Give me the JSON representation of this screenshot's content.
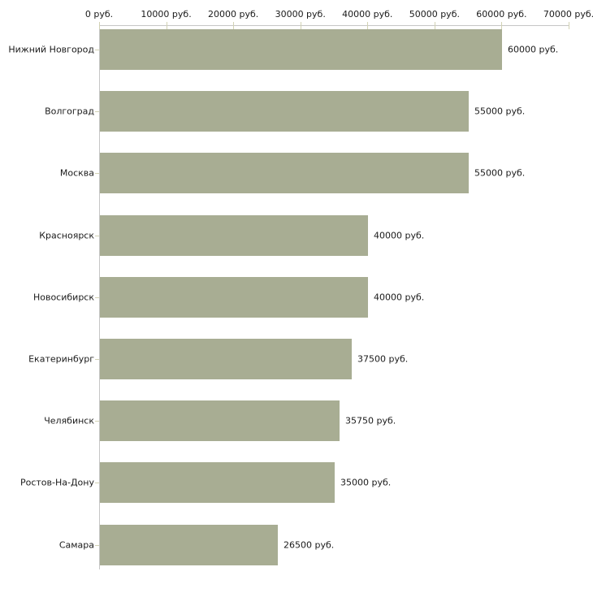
{
  "chart_data": {
    "type": "bar",
    "orientation": "horizontal",
    "title": "",
    "xlabel": "",
    "ylabel": "",
    "categories": [
      "Нижний Новгород",
      "Волгоград",
      "Москва",
      "Красноярск",
      "Новосибирск",
      "Екатеринбург",
      "Челябинск",
      "Ростов-На-Дону",
      "Самара"
    ],
    "values": [
      60000,
      55000,
      55000,
      40000,
      40000,
      37500,
      35750,
      35000,
      26500
    ],
    "bar_labels": [
      "60000 руб.",
      "55000 руб.",
      "55000 руб.",
      "40000 руб.",
      "40000 руб.",
      "37500 руб.",
      "35750 руб.",
      "35000 руб.",
      "26500 руб."
    ],
    "x_tick_labels": [
      "0 руб.",
      "10000 руб.",
      "20000 руб.",
      "30000 руб.",
      "40000 руб.",
      "50000 руб.",
      "60000 руб.",
      "70000 руб."
    ],
    "x_tick_values": [
      0,
      10000,
      20000,
      30000,
      40000,
      50000,
      60000,
      70000
    ],
    "xlim": [
      0,
      70000
    ],
    "grid": false,
    "legend": false,
    "bar_color": "#a8ad93",
    "axis_color": "#c6c6c6",
    "tick_color": "#d2d2b4",
    "text_color": "#1a1a1a",
    "background_color": "#ffffff"
  }
}
